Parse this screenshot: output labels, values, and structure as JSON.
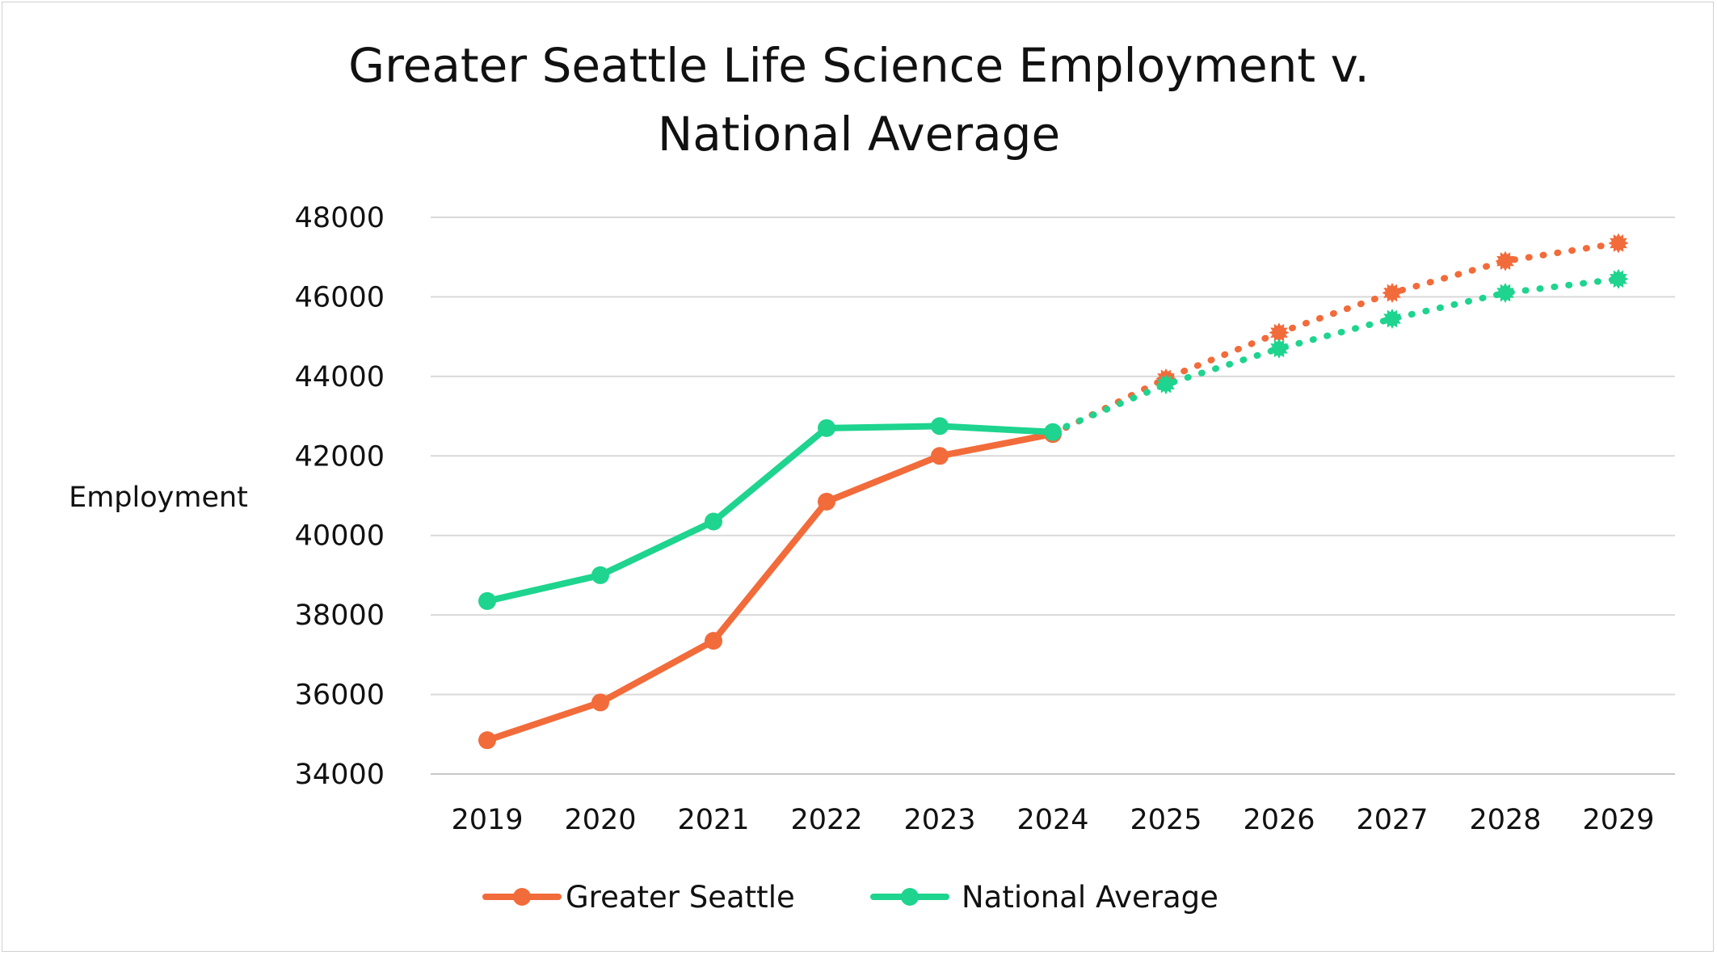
{
  "chart_data": {
    "type": "line",
    "title_lines": [
      "Greater Seattle Life Science Employment v.",
      "National Average"
    ],
    "ylabel": "Employment",
    "xlabel": "",
    "categories": [
      "2019",
      "2020",
      "2021",
      "2022",
      "2023",
      "2024",
      "2025",
      "2026",
      "2027",
      "2028",
      "2029"
    ],
    "ylim": [
      34000,
      48000
    ],
    "yticks": [
      "34000",
      "36000",
      "38000",
      "40000",
      "42000",
      "44000",
      "46000",
      "48000"
    ],
    "grid": "horizontal",
    "legend_position": "bottom",
    "actual_through": "2024",
    "series": [
      {
        "name": "Greater Seattle",
        "color": "#f26b3a",
        "values": [
          34850,
          35800,
          37350,
          40850,
          42000,
          42550,
          43950,
          45100,
          46100,
          46900,
          47350
        ]
      },
      {
        "name": "National Average",
        "color": "#1ed48e",
        "values": [
          38350,
          39000,
          40350,
          42700,
          42750,
          42600,
          43800,
          44700,
          45450,
          46100,
          46450
        ]
      }
    ]
  }
}
